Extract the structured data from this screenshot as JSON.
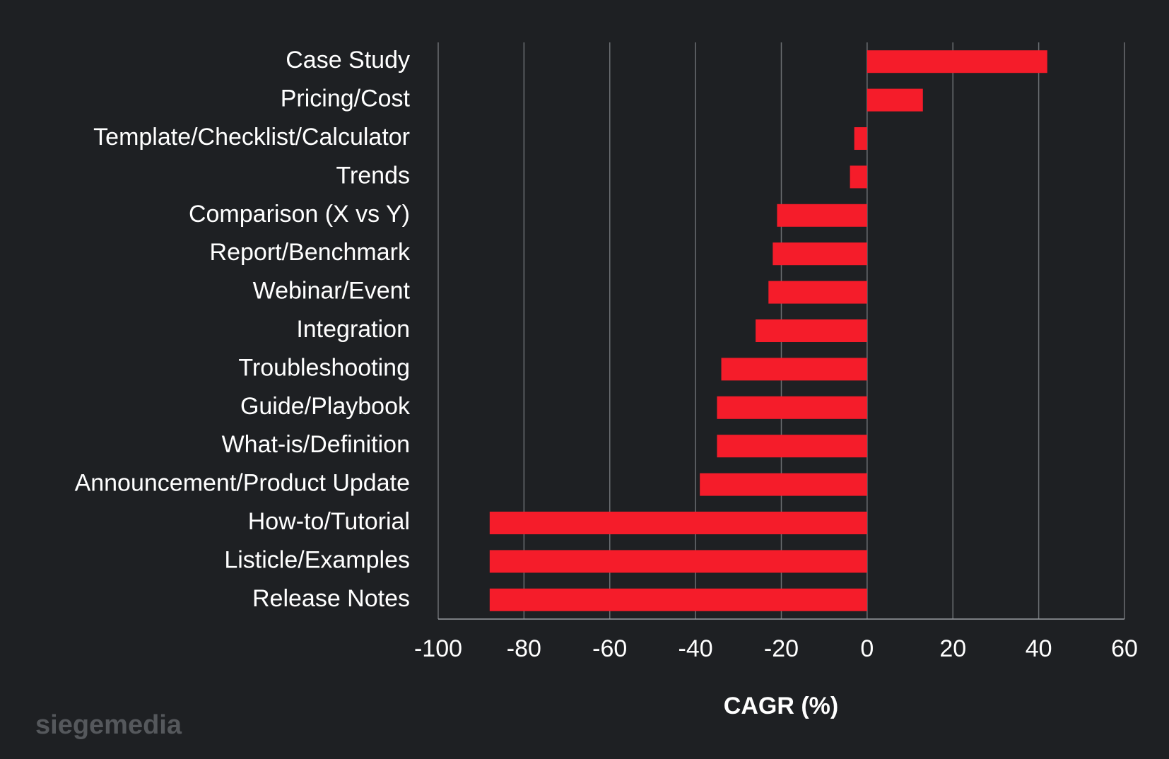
{
  "chart_data": {
    "type": "barh",
    "xlabel": "CAGR (%)",
    "watermark": "siegemedia",
    "categories": [
      "Case Study",
      "Pricing/Cost",
      "Template/Checklist/Calculator",
      "Trends",
      "Comparison (X vs Y)",
      "Report/Benchmark",
      "Webinar/Event",
      "Integration",
      "Troubleshooting",
      "Guide/Playbook",
      "What-is/Definition",
      "Announcement/Product Update",
      "How-to/Tutorial",
      "Listicle/Examples",
      "Release Notes"
    ],
    "values": [
      42,
      13,
      -3,
      -4,
      -21,
      -22,
      -23,
      -26,
      -34,
      -35,
      -35,
      -39,
      -88,
      -88,
      -88
    ],
    "color": "#f51c2a",
    "xlim": [
      -100,
      60
    ],
    "xticks": [
      -100,
      -80,
      -60,
      -40,
      -20,
      0,
      20,
      40,
      60
    ],
    "grid": true
  }
}
